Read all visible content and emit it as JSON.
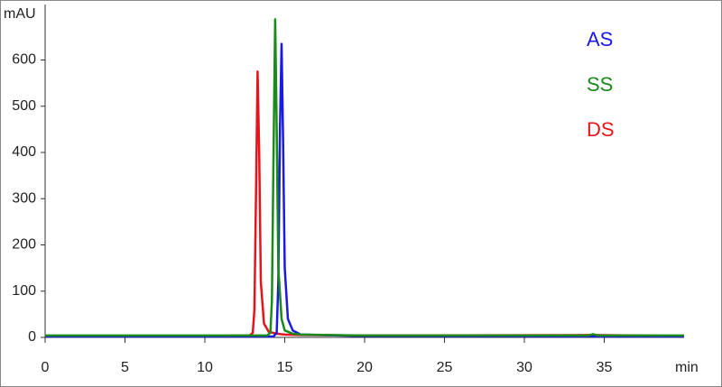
{
  "chart_data": {
    "type": "line",
    "y_label": "mAU",
    "x_label": "min",
    "xlim": [
      0,
      40
    ],
    "xticks": [
      0,
      5,
      10,
      15,
      20,
      25,
      30,
      35
    ],
    "ylim": [
      0,
      720
    ],
    "yticks": [
      0,
      100,
      200,
      300,
      400,
      500,
      600
    ],
    "series": [
      {
        "name": "DS",
        "color": "#e8141b",
        "x": [
          0,
          10,
          12.8,
          13.0,
          13.1,
          13.2,
          13.3,
          13.4,
          13.5,
          13.7,
          14.0,
          14.5,
          15,
          16,
          20,
          34.3,
          40
        ],
        "values": [
          3,
          3,
          4,
          10,
          60,
          300,
          575,
          400,
          120,
          30,
          12,
          8,
          6,
          5,
          4,
          5,
          3
        ]
      },
      {
        "name": "AS",
        "color": "#1a1ae0",
        "x": [
          0,
          14.3,
          14.5,
          14.6,
          14.7,
          14.8,
          14.9,
          15.0,
          15.2,
          15.5,
          16,
          20,
          40
        ],
        "values": [
          2,
          2,
          10,
          120,
          450,
          635,
          420,
          150,
          40,
          15,
          6,
          3,
          2
        ]
      },
      {
        "name": "SS",
        "color": "#1a8a1a",
        "x": [
          0,
          13.9,
          14.1,
          14.2,
          14.3,
          14.4,
          14.5,
          14.6,
          14.8,
          15.0,
          15.5,
          16,
          20,
          34,
          34.3,
          34.6,
          40
        ],
        "values": [
          4,
          4,
          10,
          80,
          400,
          688,
          450,
          150,
          40,
          15,
          8,
          6,
          4,
          4,
          7,
          4,
          4
        ]
      }
    ]
  }
}
